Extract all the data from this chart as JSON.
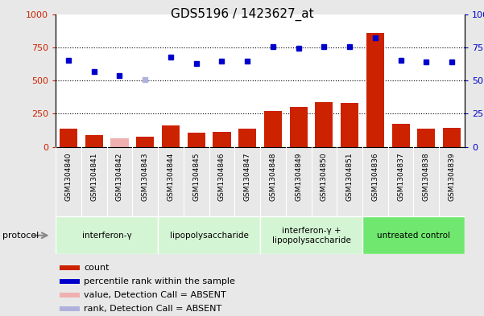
{
  "title": "GDS5196 / 1423627_at",
  "samples": [
    "GSM1304840",
    "GSM1304841",
    "GSM1304842",
    "GSM1304843",
    "GSM1304844",
    "GSM1304845",
    "GSM1304846",
    "GSM1304847",
    "GSM1304848",
    "GSM1304849",
    "GSM1304850",
    "GSM1304851",
    "GSM1304836",
    "GSM1304837",
    "GSM1304838",
    "GSM1304839"
  ],
  "count_values": [
    140,
    90,
    65,
    75,
    160,
    110,
    115,
    135,
    270,
    300,
    335,
    330,
    860,
    175,
    135,
    145
  ],
  "count_absent": [
    false,
    false,
    true,
    false,
    false,
    false,
    false,
    false,
    false,
    false,
    false,
    false,
    false,
    false,
    false,
    false
  ],
  "rank_values": [
    65,
    57,
    54,
    51,
    68,
    63,
    64.5,
    64.5,
    75.5,
    74.5,
    75.5,
    75.5,
    82,
    65.5,
    64,
    64
  ],
  "rank_absent": [
    false,
    false,
    false,
    true,
    false,
    false,
    false,
    false,
    false,
    false,
    false,
    false,
    false,
    false,
    false,
    false
  ],
  "protocols": [
    {
      "label": "interferon-γ",
      "start": 0,
      "end": 4,
      "color": "#d4f5d4"
    },
    {
      "label": "lipopolysaccharide",
      "start": 4,
      "end": 8,
      "color": "#d4f5d4"
    },
    {
      "label": "interferon-γ +\nlipopolysaccharide",
      "start": 8,
      "end": 12,
      "color": "#d4f5d4"
    },
    {
      "label": "untreated control",
      "start": 12,
      "end": 16,
      "color": "#70e870"
    }
  ],
  "bar_color_normal": "#cc2200",
  "bar_color_absent": "#f0b0b0",
  "dot_color_normal": "#0000cc",
  "dot_color_absent": "#b0b0dd",
  "bg_color": "#e8e8e8",
  "plot_bg": "#ffffff",
  "xtick_bg": "#d0d0d0",
  "legend_items": [
    {
      "label": "count",
      "color": "#cc2200"
    },
    {
      "label": "percentile rank within the sample",
      "color": "#0000cc"
    },
    {
      "label": "value, Detection Call = ABSENT",
      "color": "#f0b0b0"
    },
    {
      "label": "rank, Detection Call = ABSENT",
      "color": "#b0b0dd"
    }
  ]
}
